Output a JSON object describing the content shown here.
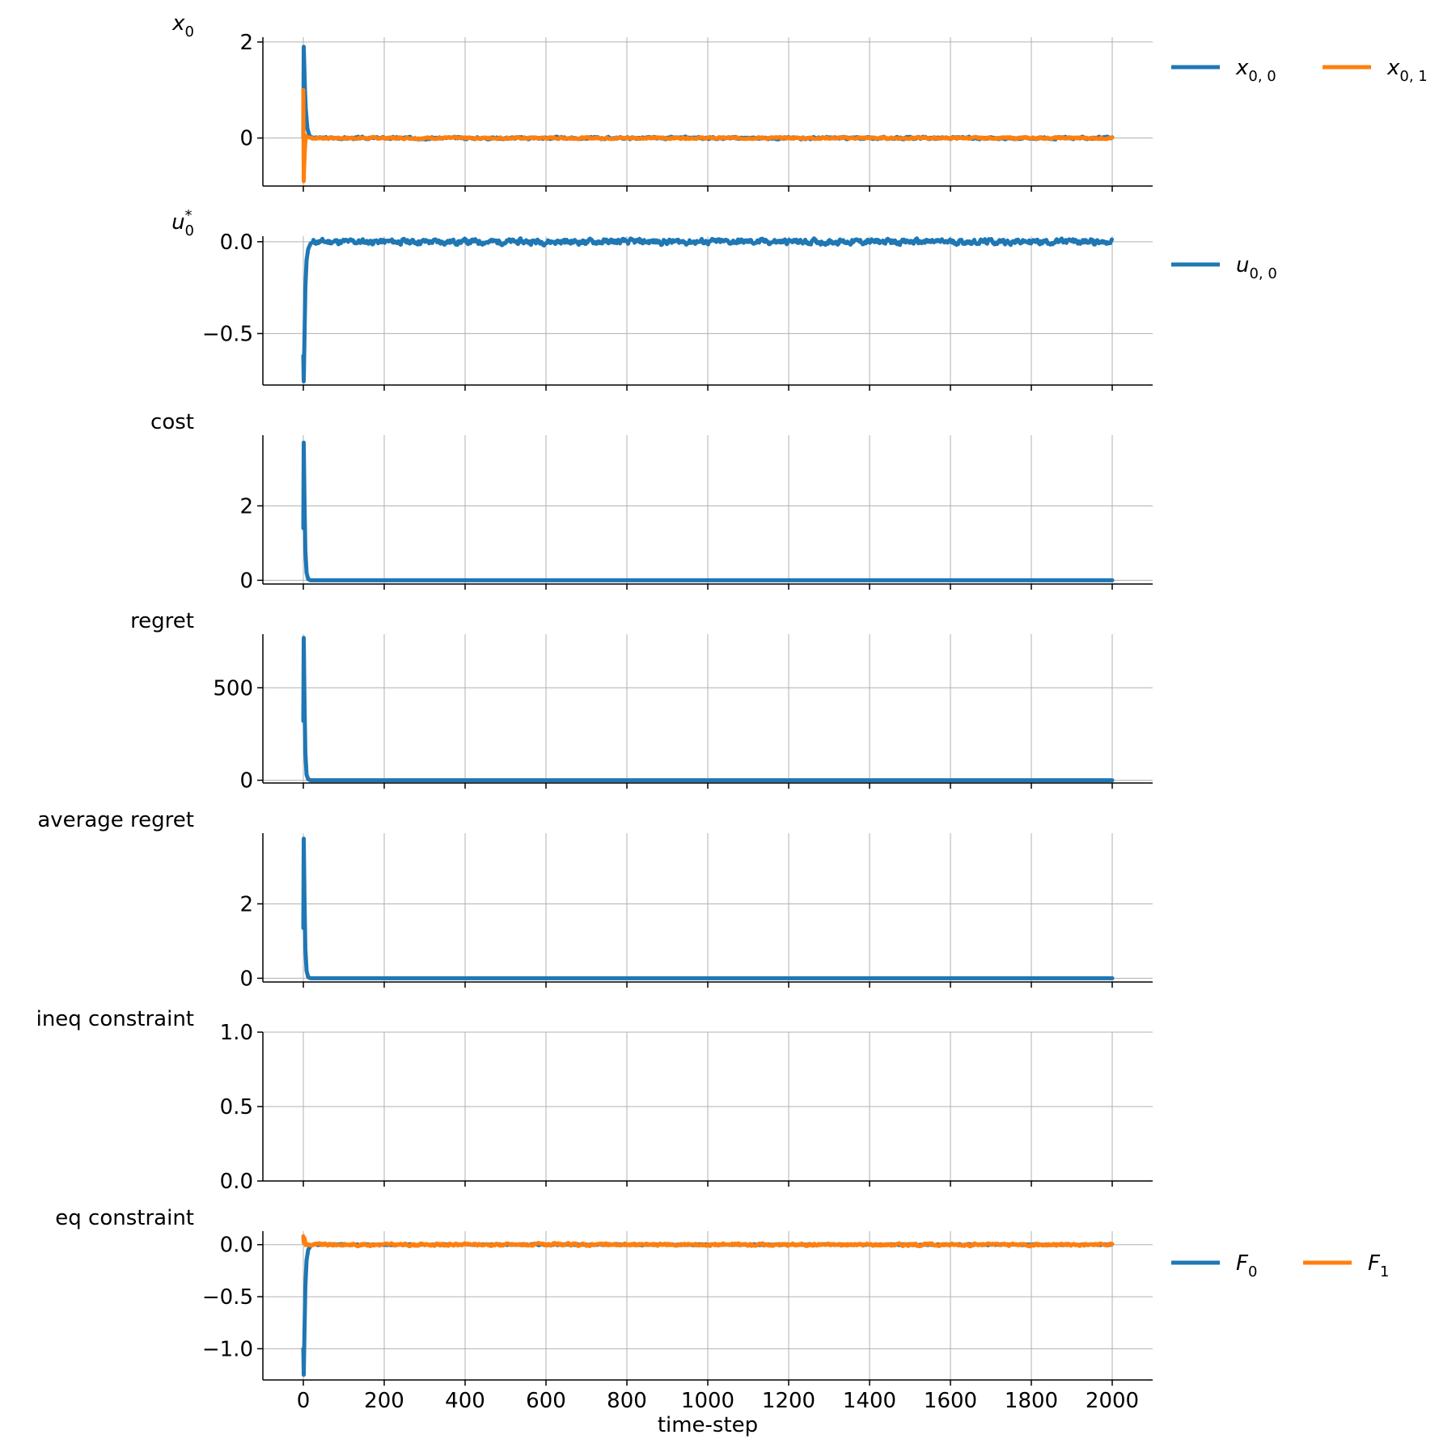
{
  "chart_data": {
    "type": "line",
    "xlabel": "time-step",
    "xlim": [
      -100,
      2100
    ],
    "xticks": [
      0,
      200,
      400,
      600,
      800,
      1000,
      1200,
      1400,
      1600,
      1800,
      2000
    ],
    "grid": true,
    "subplots": [
      {
        "key": "x0",
        "ylabel_tex": {
          "base": "x",
          "sub": "0",
          "sup": ""
        },
        "ylim": [
          -1.0,
          2.1
        ],
        "yticks": [
          {
            "v": 0,
            "label": "0"
          },
          {
            "v": 2,
            "label": "2"
          }
        ],
        "legend": {
          "placement": "right",
          "entries": [
            {
              "base": "x",
              "sub": "0, 0",
              "color": "#1f77b4"
            },
            {
              "base": "x",
              "sub": "0, 1",
              "color": "#ff7f0e"
            }
          ]
        },
        "series": [
          {
            "color": "#1f77b4",
            "transient": [
              [
                0,
                0.0
              ],
              [
                1,
                1.9
              ],
              [
                2,
                1.6
              ],
              [
                4,
                1.0
              ],
              [
                6,
                0.6
              ],
              [
                10,
                0.2
              ],
              [
                15,
                0.05
              ],
              [
                22,
                0.0
              ]
            ],
            "noise": 0.018,
            "seed": 3
          },
          {
            "color": "#ff7f0e",
            "transient": [
              [
                0,
                1.0
              ],
              [
                1,
                -0.9
              ],
              [
                2,
                -0.6
              ],
              [
                4,
                -0.2
              ],
              [
                6,
                0.05
              ],
              [
                10,
                0.02
              ],
              [
                22,
                0.0
              ]
            ],
            "noise": 0.015,
            "seed": 7
          }
        ]
      },
      {
        "key": "u0",
        "ylabel_tex": {
          "base": "u",
          "sub": "0",
          "sup": "*"
        },
        "ylim": [
          -0.78,
          0.03
        ],
        "yticks": [
          {
            "v": -0.5,
            "label": "−0.5"
          },
          {
            "v": 0.0,
            "label": "0.0"
          }
        ],
        "legend": {
          "placement": "right",
          "entries": [
            {
              "base": "u",
              "sub": "0, 0",
              "color": "#1f77b4"
            }
          ]
        },
        "series": [
          {
            "color": "#1f77b4",
            "transient": [
              [
                0,
                -0.62
              ],
              [
                1,
                -0.76
              ],
              [
                3,
                -0.5
              ],
              [
                5,
                -0.25
              ],
              [
                8,
                -0.1
              ],
              [
                12,
                -0.04
              ],
              [
                18,
                -0.01
              ],
              [
                25,
                0.0
              ]
            ],
            "noise": 0.012,
            "seed": 11
          }
        ]
      },
      {
        "key": "cost",
        "ylabel": "cost",
        "ylim": [
          -0.1,
          3.9
        ],
        "yticks": [
          {
            "v": 0,
            "label": "0"
          },
          {
            "v": 2,
            "label": "2"
          }
        ],
        "legend": null,
        "series": [
          {
            "color": "#1f77b4",
            "transient": [
              [
                0,
                1.4
              ],
              [
                1,
                3.7
              ],
              [
                3,
                2.0
              ],
              [
                5,
                0.8
              ],
              [
                8,
                0.2
              ],
              [
                12,
                0.03
              ],
              [
                18,
                0.0
              ]
            ],
            "noise": 0.0,
            "seed": 1
          }
        ]
      },
      {
        "key": "regret",
        "ylabel": "regret",
        "ylim": [
          -15,
          790
        ],
        "yticks": [
          {
            "v": 0,
            "label": "0"
          },
          {
            "v": 500,
            "label": "500"
          }
        ],
        "legend": null,
        "series": [
          {
            "color": "#1f77b4",
            "transient": [
              [
                0,
                320
              ],
              [
                1,
                770
              ],
              [
                3,
                400
              ],
              [
                5,
                150
              ],
              [
                8,
                30
              ],
              [
                12,
                5
              ],
              [
                18,
                0
              ]
            ],
            "noise": 0.0,
            "seed": 1
          }
        ]
      },
      {
        "key": "avgregret",
        "ylabel": "average regret",
        "ylim": [
          -0.1,
          3.9
        ],
        "yticks": [
          {
            "v": 0,
            "label": "0"
          },
          {
            "v": 2,
            "label": "2"
          }
        ],
        "legend": null,
        "series": [
          {
            "color": "#1f77b4",
            "transient": [
              [
                0,
                1.35
              ],
              [
                1,
                3.75
              ],
              [
                3,
                2.0
              ],
              [
                5,
                0.8
              ],
              [
                8,
                0.2
              ],
              [
                12,
                0.03
              ],
              [
                18,
                0.0
              ]
            ],
            "noise": 0.0,
            "seed": 1
          }
        ]
      },
      {
        "key": "ineq",
        "ylabel": "ineq constraint",
        "ylim": [
          0.0,
          1.0
        ],
        "yticks": [
          {
            "v": 0.0,
            "label": "0.0"
          },
          {
            "v": 0.5,
            "label": "0.5"
          },
          {
            "v": 1.0,
            "label": "1.0"
          }
        ],
        "legend": null,
        "series": []
      },
      {
        "key": "eq",
        "ylabel": "eq constraint",
        "ylim": [
          -1.3,
          0.13
        ],
        "yticks": [
          {
            "v": -1.0,
            "label": "−1.0"
          },
          {
            "v": -0.5,
            "label": "−0.5"
          },
          {
            "v": 0.0,
            "label": "0.0"
          }
        ],
        "legend": {
          "placement": "right",
          "entries": [
            {
              "base": "F",
              "sub": "0",
              "color": "#1f77b4"
            },
            {
              "base": "F",
              "sub": "1",
              "color": "#ff7f0e"
            }
          ]
        },
        "series": [
          {
            "color": "#1f77b4",
            "transient": [
              [
                0,
                -1.0
              ],
              [
                1,
                -1.25
              ],
              [
                3,
                -0.8
              ],
              [
                5,
                -0.4
              ],
              [
                8,
                -0.15
              ],
              [
                12,
                -0.05
              ],
              [
                18,
                -0.01
              ],
              [
                25,
                0.0
              ]
            ],
            "noise": 0.004,
            "seed": 5
          },
          {
            "color": "#ff7f0e",
            "transient": [
              [
                0,
                0.08
              ],
              [
                1,
                0.02
              ],
              [
                3,
                0.06
              ],
              [
                6,
                0.0
              ]
            ],
            "noise": 0.01,
            "seed": 9
          }
        ]
      }
    ]
  }
}
